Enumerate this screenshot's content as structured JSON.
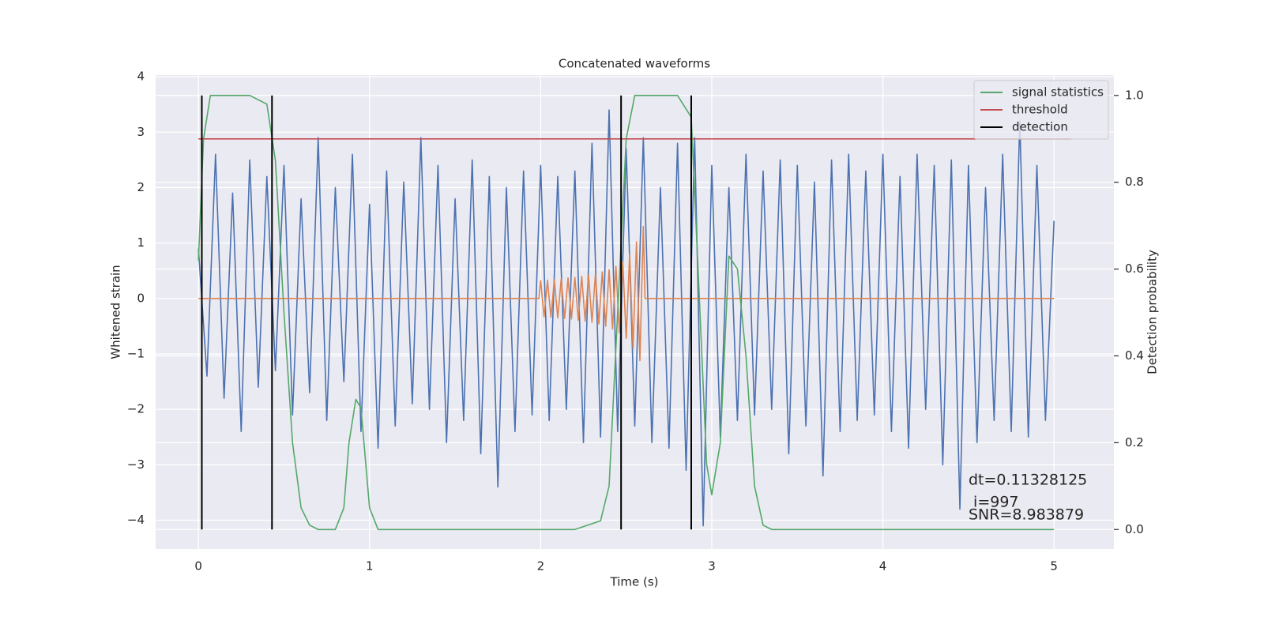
{
  "chart_data": {
    "type": "line",
    "title": "Concatenated waveforms",
    "xlabel": "Time (s)",
    "ylabel": "Whitened strain",
    "y2label": "Detection probability",
    "xlim": [
      -0.25,
      5.35
    ],
    "xticks": [
      0,
      1,
      2,
      3,
      4,
      5
    ],
    "ylim": [
      -4.52,
      4.03
    ],
    "yticks": [
      {
        "value": -4,
        "label": "−4"
      },
      {
        "value": -3,
        "label": "−3"
      },
      {
        "value": -2,
        "label": "−2"
      },
      {
        "value": -1,
        "label": "−1"
      },
      0,
      1,
      2,
      3,
      4
    ],
    "y2lim": [
      -0.045,
      1.047
    ],
    "y2ticks": [
      {
        "value": 0,
        "label": "0.0"
      },
      0.2,
      0.4,
      0.6,
      0.8,
      {
        "value": 1,
        "label": "1.0"
      }
    ],
    "grid": true,
    "legend": "upper right",
    "series": [
      {
        "color": "#4c72b0",
        "x": [
          0,
          0.05,
          0.1,
          0.15,
          0.2,
          0.25,
          0.3,
          0.35,
          0.4,
          0.45,
          0.5,
          0.55,
          0.6,
          0.65,
          0.7,
          0.75,
          0.8,
          0.85,
          0.9,
          0.95,
          1,
          1.05,
          1.1,
          1.15,
          1.2,
          1.25,
          1.3,
          1.35,
          1.4,
          1.45,
          1.5,
          1.55,
          1.6,
          1.65,
          1.7,
          1.75,
          1.8,
          1.85,
          1.9,
          1.95,
          2,
          2.05,
          2.1,
          2.15,
          2.2,
          2.25,
          2.3,
          2.35,
          2.4,
          2.45,
          2.5,
          2.55,
          2.6,
          2.65,
          2.7,
          2.75,
          2.8,
          2.85,
          2.9,
          2.95,
          3,
          3.05,
          3.1,
          3.15,
          3.2,
          3.25,
          3.3,
          3.35,
          3.4,
          3.45,
          3.5,
          3.55,
          3.6,
          3.65,
          3.7,
          3.75,
          3.8,
          3.85,
          3.9,
          3.95,
          4,
          4.05,
          4.1,
          4.15,
          4.2,
          4.25,
          4.3,
          4.35,
          4.4,
          4.45,
          4.5,
          4.55,
          4.6,
          4.65,
          4.7,
          4.75,
          4.8,
          4.85,
          4.9,
          4.95,
          5
        ],
        "values": [
          0.9,
          -1.4,
          2.6,
          -1.8,
          1.9,
          -2.4,
          2.5,
          -1.6,
          2.2,
          -1.3,
          2.4,
          -2.1,
          1.8,
          -1.7,
          2.9,
          -2.2,
          2.0,
          -1.5,
          2.6,
          -2.4,
          1.7,
          -2.7,
          2.3,
          -2.3,
          2.1,
          -1.9,
          2.9,
          -2.0,
          2.4,
          -2.6,
          1.8,
          -2.2,
          2.5,
          -2.8,
          2.2,
          -3.4,
          2.0,
          -2.4,
          2.3,
          -2.1,
          2.4,
          -2.2,
          2.2,
          -2.0,
          2.3,
          -2.6,
          2.8,
          -2.5,
          3.4,
          -2.4,
          2.7,
          -2.3,
          2.9,
          -2.6,
          2.0,
          -2.7,
          2.8,
          -3.1,
          2.9,
          -4.1,
          2.4,
          -2.5,
          2.0,
          -2.2,
          2.6,
          -2.1,
          2.3,
          -2.0,
          2.5,
          -2.8,
          2.4,
          -2.3,
          2.1,
          -3.2,
          2.5,
          -2.4,
          2.6,
          -2.2,
          2.3,
          -2.1,
          2.6,
          -2.4,
          2.2,
          -2.7,
          2.6,
          -2.0,
          2.4,
          -3.0,
          2.5,
          -3.8,
          2.4,
          -2.6,
          2.0,
          -2.2,
          2.6,
          -2.4,
          3.2,
          -2.5,
          2.4,
          -2.2,
          1.4
        ]
      },
      {
        "color": "#dd8452",
        "x": [
          0,
          1.99,
          2.0,
          2.02,
          2.04,
          2.06,
          2.08,
          2.1,
          2.12,
          2.14,
          2.16,
          2.18,
          2.2,
          2.22,
          2.24,
          2.26,
          2.28,
          2.3,
          2.32,
          2.34,
          2.36,
          2.38,
          2.4,
          2.42,
          2.44,
          2.46,
          2.48,
          2.5,
          2.52,
          2.54,
          2.56,
          2.58,
          2.6,
          2.61,
          5
        ],
        "values": [
          0,
          0,
          0.32,
          -0.33,
          0.33,
          -0.34,
          0.34,
          -0.35,
          0.35,
          -0.36,
          0.37,
          -0.37,
          0.38,
          -0.39,
          0.4,
          -0.41,
          0.42,
          -0.43,
          0.44,
          -0.46,
          0.48,
          -0.5,
          0.52,
          -0.55,
          0.58,
          -0.62,
          0.66,
          -0.72,
          0.8,
          -0.9,
          1.02,
          -1.12,
          1.3,
          0,
          0
        ]
      },
      {
        "name": "signal statistics",
        "color": "#55a868",
        "axis": "y2",
        "x": [
          0,
          0.03,
          0.07,
          0.3,
          0.4,
          0.45,
          0.5,
          0.55,
          0.6,
          0.65,
          0.7,
          0.8,
          0.85,
          0.88,
          0.92,
          0.95,
          1.0,
          1.05,
          2.2,
          2.35,
          2.4,
          2.45,
          2.5,
          2.55,
          2.8,
          2.88,
          2.92,
          2.97,
          3.0,
          3.05,
          3.1,
          3.15,
          3.2,
          3.25,
          3.3,
          3.35,
          5.0
        ],
        "values": [
          0.62,
          0.9,
          1.0,
          1.0,
          0.98,
          0.85,
          0.5,
          0.2,
          0.05,
          0.01,
          0.0,
          0.0,
          0.05,
          0.2,
          0.3,
          0.28,
          0.05,
          0.0,
          0.0,
          0.02,
          0.1,
          0.5,
          0.9,
          1.0,
          1.0,
          0.95,
          0.6,
          0.15,
          0.08,
          0.2,
          0.63,
          0.6,
          0.4,
          0.1,
          0.01,
          0.0,
          0.0
        ]
      },
      {
        "name": "threshold",
        "color": "#c44e52",
        "axis": "y2",
        "x": [
          0,
          5.1
        ],
        "values": [
          0.9,
          0.9
        ]
      }
    ],
    "vlines": {
      "name": "detection",
      "color": "#000000",
      "axis": "y2",
      "x": [
        0.02,
        0.43,
        2.47,
        2.88
      ],
      "ymin": 0,
      "ymax": 1
    },
    "annotation": [
      "dt=0.11328125",
      " i=997",
      "SNR=8.983879"
    ]
  }
}
